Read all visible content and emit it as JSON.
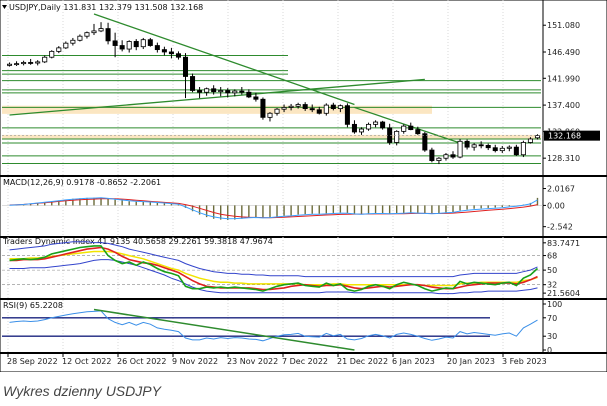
{
  "caption": "Wykres dzienny USDJPY",
  "chart_data": {
    "type": "candlestick",
    "symbol_header": "USDJPY,Daily  131.831 132.379 131.508 132.168",
    "price_axis": {
      "ticks": [
        "151.080",
        "146.490",
        "141.990",
        "137.400",
        "132.860",
        "128.310"
      ],
      "tick_values": [
        151.08,
        146.49,
        141.99,
        137.4,
        132.86,
        128.31
      ],
      "range": [
        125.6,
        153.0
      ],
      "current_price": "132.168",
      "current_value": 132.168
    },
    "x_labels": [
      "28 Sep 2022",
      "12 Oct 2022",
      "26 Oct 2022",
      "9 Nov 2022",
      "23 Nov 2022",
      "7 Dec 2022",
      "21 Dec 2022",
      "6 Jan 2023",
      "20 Jan 2023",
      "3 Feb 2023"
    ],
    "candles": [
      [
        144.2,
        144.7,
        144.0,
        144.4
      ],
      [
        144.4,
        144.9,
        144.1,
        144.5
      ],
      [
        144.5,
        145.0,
        144.2,
        144.7
      ],
      [
        144.7,
        145.3,
        144.3,
        144.6
      ],
      [
        144.6,
        145.1,
        144.2,
        144.8
      ],
      [
        144.8,
        145.9,
        144.6,
        145.6
      ],
      [
        145.6,
        146.8,
        145.4,
        146.6
      ],
      [
        146.6,
        147.5,
        146.3,
        147.2
      ],
      [
        147.2,
        148.3,
        147.0,
        148.0
      ],
      [
        148.0,
        148.9,
        147.6,
        148.5
      ],
      [
        148.5,
        149.5,
        148.3,
        149.2
      ],
      [
        149.2,
        150.0,
        148.8,
        149.8
      ],
      [
        149.8,
        151.3,
        149.4,
        150.1
      ],
      [
        150.1,
        151.6,
        149.9,
        150.5
      ],
      [
        150.5,
        151.5,
        147.8,
        148.4
      ],
      [
        148.4,
        149.8,
        145.6,
        147.6
      ],
      [
        147.6,
        148.5,
        146.6,
        147.0
      ],
      [
        147.0,
        148.5,
        146.4,
        148.3
      ],
      [
        148.3,
        148.7,
        146.8,
        147.4
      ],
      [
        147.4,
        148.9,
        147.0,
        148.6
      ],
      [
        148.6,
        148.9,
        147.4,
        147.6
      ],
      [
        147.6,
        148.1,
        146.4,
        146.9
      ],
      [
        146.9,
        147.4,
        145.9,
        146.5
      ],
      [
        146.5,
        147.2,
        145.4,
        146.2
      ],
      [
        146.2,
        146.6,
        145.2,
        145.6
      ],
      [
        145.6,
        146.3,
        138.6,
        142.3
      ],
      [
        142.3,
        142.8,
        139.6,
        139.9
      ],
      [
        139.9,
        140.5,
        138.6,
        139.6
      ],
      [
        139.6,
        140.4,
        139.0,
        140.2
      ],
      [
        140.2,
        140.8,
        139.2,
        139.7
      ],
      [
        139.7,
        140.5,
        138.9,
        139.9
      ],
      [
        139.9,
        140.3,
        138.7,
        139.5
      ],
      [
        139.5,
        140.1,
        138.9,
        139.8
      ],
      [
        139.8,
        140.5,
        139.2,
        139.6
      ],
      [
        139.6,
        140.1,
        138.6,
        138.8
      ],
      [
        138.8,
        139.5,
        138.0,
        138.4
      ],
      [
        138.4,
        138.7,
        134.9,
        135.3
      ],
      [
        135.3,
        136.2,
        134.6,
        136.0
      ],
      [
        136.0,
        136.9,
        135.6,
        136.7
      ],
      [
        136.7,
        137.5,
        136.2,
        137.0
      ],
      [
        137.0,
        137.6,
        136.5,
        137.2
      ],
      [
        137.2,
        137.8,
        136.8,
        137.5
      ],
      [
        137.5,
        137.9,
        136.4,
        136.8
      ],
      [
        136.8,
        137.5,
        136.2,
        136.6
      ],
      [
        136.6,
        137.1,
        135.8,
        136.0
      ],
      [
        136.0,
        137.7,
        135.6,
        137.4
      ],
      [
        137.4,
        137.8,
        136.5,
        136.8
      ],
      [
        136.8,
        137.5,
        136.2,
        137.3
      ],
      [
        137.3,
        137.7,
        133.6,
        134.1
      ],
      [
        134.1,
        134.8,
        132.5,
        132.8
      ],
      [
        132.8,
        133.6,
        132.3,
        133.3
      ],
      [
        133.3,
        134.4,
        133.0,
        134.1
      ],
      [
        134.1,
        134.8,
        133.6,
        134.5
      ],
      [
        134.5,
        134.7,
        133.2,
        133.5
      ],
      [
        133.5,
        134.2,
        130.6,
        131.0
      ],
      [
        131.0,
        133.1,
        130.5,
        132.9
      ],
      [
        132.9,
        134.1,
        132.5,
        133.8
      ],
      [
        133.8,
        134.4,
        133.1,
        133.2
      ],
      [
        133.2,
        133.7,
        132.3,
        132.5
      ],
      [
        132.5,
        132.8,
        129.4,
        129.7
      ],
      [
        129.7,
        130.1,
        127.6,
        127.9
      ],
      [
        127.9,
        128.5,
        127.3,
        128.3
      ],
      [
        128.3,
        129.2,
        127.9,
        128.9
      ],
      [
        128.9,
        129.5,
        128.2,
        128.5
      ],
      [
        128.5,
        131.6,
        128.3,
        131.2
      ],
      [
        131.2,
        131.5,
        129.8,
        130.2
      ],
      [
        130.2,
        130.9,
        129.6,
        130.6
      ],
      [
        130.6,
        131.2,
        130.0,
        130.5
      ],
      [
        130.5,
        130.8,
        129.7,
        130.1
      ],
      [
        130.1,
        130.6,
        129.3,
        129.6
      ],
      [
        129.6,
        130.4,
        129.2,
        130.0
      ],
      [
        130.0,
        130.5,
        129.5,
        130.2
      ],
      [
        130.2,
        130.6,
        128.7,
        128.9
      ],
      [
        128.9,
        131.3,
        128.5,
        131.0
      ],
      [
        131.0,
        131.9,
        130.8,
        131.6
      ],
      [
        131.8,
        132.4,
        131.5,
        132.2
      ]
    ],
    "resistance_lines": [
      145.9,
      143.3,
      142.7,
      141.6,
      140.0,
      139.5,
      137.0,
      133.5,
      131.6,
      130.9,
      128.7,
      127.4
    ],
    "supply_zones": [
      [
        137.3,
        135.9
      ],
      [
        132.3,
        131.5
      ]
    ],
    "trendlines": [
      [
        [
          12,
          153.0
        ],
        [
          49,
          137.5
        ]
      ],
      [
        [
          0,
          135.7
        ],
        [
          59,
          141.8
        ]
      ],
      [
        [
          49,
          137.0
        ],
        [
          64,
          130.9
        ]
      ]
    ],
    "macd": {
      "label": "MACD(12,26,9) 0.9178 -0.8652 -2.2061",
      "ticks": [
        "2.0167",
        "0.00",
        "-2.542"
      ],
      "tick_values": [
        2.0167,
        0,
        -2.542
      ],
      "range": [
        -3.3,
        2.8
      ],
      "histogram": [
        0.0,
        0.05,
        0.1,
        0.2,
        0.3,
        0.4,
        0.5,
        0.6,
        0.7,
        0.8,
        0.85,
        0.9,
        0.92,
        0.95,
        0.85,
        0.7,
        0.6,
        0.5,
        0.45,
        0.42,
        0.38,
        0.32,
        0.25,
        0.18,
        0.1,
        -0.3,
        -0.7,
        -1.1,
        -1.4,
        -1.6,
        -1.7,
        -1.75,
        -1.7,
        -1.6,
        -1.5,
        -1.45,
        -1.5,
        -1.45,
        -1.35,
        -1.25,
        -1.2,
        -1.1,
        -1.05,
        -1.0,
        -1.0,
        -0.95,
        -0.9,
        -0.85,
        -0.9,
        -1.0,
        -1.05,
        -1.0,
        -0.95,
        -0.95,
        -1.0,
        -0.95,
        -0.9,
        -0.85,
        -0.9,
        -0.95,
        -1.0,
        -0.95,
        -0.85,
        -0.8,
        -0.6,
        -0.5,
        -0.4,
        -0.35,
        -0.3,
        -0.25,
        -0.2,
        -0.1,
        0.0,
        0.1,
        0.3,
        0.9
      ],
      "signal": [
        0.05,
        0.08,
        0.12,
        0.18,
        0.25,
        0.32,
        0.4,
        0.48,
        0.55,
        0.62,
        0.68,
        0.72,
        0.76,
        0.8,
        0.82,
        0.8,
        0.76,
        0.7,
        0.62,
        0.55,
        0.48,
        0.42,
        0.36,
        0.3,
        0.24,
        0.1,
        -0.1,
        -0.35,
        -0.6,
        -0.85,
        -1.05,
        -1.2,
        -1.3,
        -1.38,
        -1.42,
        -1.44,
        -1.46,
        -1.47,
        -1.45,
        -1.42,
        -1.38,
        -1.33,
        -1.28,
        -1.23,
        -1.19,
        -1.15,
        -1.11,
        -1.07,
        -1.05,
        -1.04,
        -1.04,
        -1.03,
        -1.02,
        -1.01,
        -1.01,
        -1.0,
        -0.99,
        -0.97,
        -0.96,
        -0.96,
        -0.97,
        -0.97,
        -0.95,
        -0.92,
        -0.86,
        -0.8,
        -0.73,
        -0.66,
        -0.59,
        -0.52,
        -0.46,
        -0.38,
        -0.3,
        -0.2,
        -0.08,
        0.1
      ]
    },
    "tdi": {
      "label": "Traders Dynamic Index 41.9135 40.5658 29.2261 59.3818 47.9674",
      "ticks": [
        "83.7471",
        "68",
        "50",
        "32",
        "21.5604"
      ],
      "tick_values": [
        83.7471,
        68,
        50,
        32,
        21.5604
      ],
      "range": [
        18,
        86
      ],
      "levels": [
        68,
        50,
        32
      ],
      "rsi_price": [
        62,
        63,
        64,
        63,
        64,
        66,
        70,
        72,
        74,
        76,
        78,
        79,
        80,
        80,
        68,
        62,
        58,
        60,
        56,
        60,
        57,
        52,
        48,
        46,
        43,
        30,
        27,
        27,
        29,
        28,
        29,
        28,
        29,
        28,
        27,
        26,
        24,
        27,
        30,
        32,
        33,
        34,
        31,
        30,
        29,
        34,
        31,
        33,
        26,
        24,
        26,
        30,
        32,
        30,
        27,
        32,
        35,
        33,
        31,
        27,
        24,
        26,
        28,
        27,
        36,
        33,
        35,
        34,
        33,
        32,
        34,
        35,
        31,
        40,
        44,
        52
      ],
      "signal": [
        62,
        62,
        63,
        63,
        63,
        64,
        66,
        68,
        70,
        72,
        74,
        76,
        77,
        78,
        76,
        72,
        67,
        63,
        61,
        59,
        58,
        56,
        53,
        50,
        47,
        42,
        37,
        33,
        30,
        29,
        28,
        28,
        28,
        28,
        28,
        27,
        26,
        26,
        27,
        28,
        30,
        31,
        32,
        31,
        30,
        31,
        31,
        32,
        30,
        28,
        27,
        28,
        29,
        30,
        29,
        30,
        31,
        32,
        32,
        31,
        29,
        28,
        27,
        27,
        29,
        31,
        32,
        33,
        34,
        34,
        34,
        34,
        33,
        35,
        38,
        42
      ],
      "band_upper": [
        75,
        76,
        77,
        78,
        79,
        80,
        82,
        83,
        84,
        85,
        85,
        85,
        84,
        84,
        83,
        81,
        79,
        76,
        74,
        72,
        70,
        68,
        66,
        64,
        62,
        58,
        55,
        52,
        50,
        48,
        47,
        46,
        46,
        45,
        45,
        44,
        44,
        43,
        43,
        43,
        43,
        43,
        42,
        42,
        42,
        42,
        42,
        42,
        42,
        42,
        42,
        42,
        42,
        42,
        42,
        42,
        42,
        42,
        42,
        42,
        42,
        42,
        42,
        42,
        44,
        45,
        46,
        46,
        46,
        46,
        46,
        46,
        46,
        48,
        50,
        54
      ],
      "band_lower": [
        52,
        52,
        52,
        53,
        53,
        53,
        54,
        55,
        56,
        57,
        58,
        60,
        62,
        63,
        63,
        62,
        60,
        58,
        56,
        53,
        50,
        47,
        44,
        40,
        37,
        33,
        29,
        26,
        24,
        23,
        22,
        22,
        22,
        22,
        22,
        22,
        22,
        22,
        22,
        22,
        22,
        22,
        22,
        22,
        22,
        23,
        23,
        23,
        23,
        22,
        22,
        22,
        22,
        22,
        22,
        22,
        22,
        22,
        22,
        22,
        22,
        21,
        21,
        21,
        22,
        22,
        23,
        23,
        24,
        24,
        24,
        24,
        24,
        25,
        26,
        28
      ],
      "market_base": [
        64,
        64,
        64,
        65,
        65,
        66,
        67,
        68,
        69,
        70,
        71,
        72,
        73,
        73,
        73,
        72,
        70,
        68,
        66,
        64,
        61,
        58,
        55,
        52,
        50,
        46,
        43,
        40,
        38,
        36,
        35,
        35,
        34,
        34,
        33,
        33,
        33,
        33,
        33,
        33,
        33,
        33,
        32,
        32,
        32,
        32,
        33,
        33,
        32,
        32,
        32,
        32,
        32,
        32,
        32,
        32,
        32,
        32,
        32,
        31,
        31,
        31,
        31,
        31,
        33,
        34,
        34,
        35,
        35,
        35,
        35,
        35,
        35,
        37,
        38,
        41
      ]
    },
    "rsi": {
      "label": "RSI(9) 65.2208",
      "ticks": [
        "100",
        "70",
        "30",
        "0"
      ],
      "tick_values": [
        100,
        70,
        30,
        0
      ],
      "range": [
        0,
        100
      ],
      "levels": [
        70,
        30
      ],
      "values": [
        60,
        62,
        63,
        62,
        63,
        66,
        70,
        73,
        76,
        79,
        81,
        83,
        84,
        85,
        68,
        60,
        55,
        60,
        54,
        60,
        56,
        48,
        45,
        43,
        40,
        26,
        22,
        22,
        26,
        24,
        27,
        25,
        27,
        26,
        24,
        23,
        20,
        25,
        30,
        33,
        34,
        36,
        30,
        29,
        28,
        36,
        31,
        34,
        24,
        22,
        25,
        31,
        34,
        31,
        26,
        34,
        37,
        34,
        30,
        25,
        21,
        24,
        28,
        26,
        40,
        35,
        38,
        36,
        34,
        32,
        35,
        37,
        30,
        48,
        56,
        65
      ]
    },
    "indicator_trendlines": [
      [
        [
          12,
          88
        ],
        [
          49,
          0
        ]
      ]
    ]
  }
}
